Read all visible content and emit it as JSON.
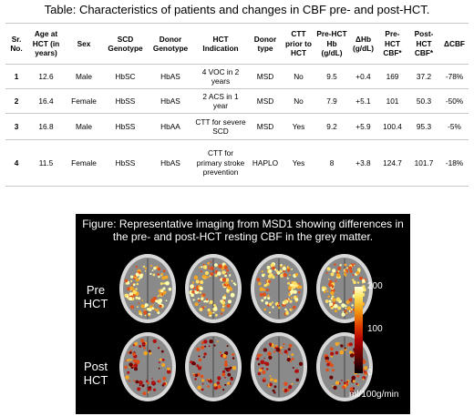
{
  "table_title": "Table: Characteristics of patients and changes in CBF pre- and post-HCT.",
  "headers": [
    "Sr. No.",
    "Age at HCT (in years)",
    "Sex",
    "SCD Genotype",
    "Donor Genotype",
    "HCT Indication",
    "Donor type",
    "CTT prior to HCT",
    "Pre-HCT Hb (g/dL)",
    "ΔHb (g/dL)",
    "Pre-HCT CBF*",
    "Post-HCT CBF*",
    "ΔCBF"
  ],
  "rows": [
    [
      "1",
      "12.6",
      "Male",
      "HbSC",
      "HbAS",
      "4 VOC in 2 years",
      "MSD",
      "No",
      "9.5",
      "+0.4",
      "169",
      "37.2",
      "-78%"
    ],
    [
      "2",
      "16.4",
      "Female",
      "HbSS",
      "HbAS",
      "2 ACS in 1 year",
      "MSD",
      "No",
      "7.9",
      "+5.1",
      "101",
      "50.3",
      "-50%"
    ],
    [
      "3",
      "16.8",
      "Male",
      "HbSS",
      "HbAA",
      "CTT for severe SCD",
      "MSD",
      "Yes",
      "9.2",
      "+5.9",
      "100.4",
      "95.3",
      "-5%"
    ],
    [
      "4",
      "11.5",
      "Female",
      "HbSS",
      "HbAS",
      "CTT for primary stroke prevention",
      "HAPLO",
      "Yes",
      "8",
      "+3.8",
      "124.7",
      "101.7",
      "-18%"
    ]
  ],
  "figure": {
    "caption": "Figure: Representative imaging from MSD1 showing differences in the pre- and post-HCT resting CBF in the grey matter.",
    "row_labels": [
      "Pre HCT",
      "Post HCT"
    ],
    "colorbar": {
      "max": "200",
      "mid": "100",
      "min": "0",
      "unit": "ml/100g/min"
    }
  }
}
